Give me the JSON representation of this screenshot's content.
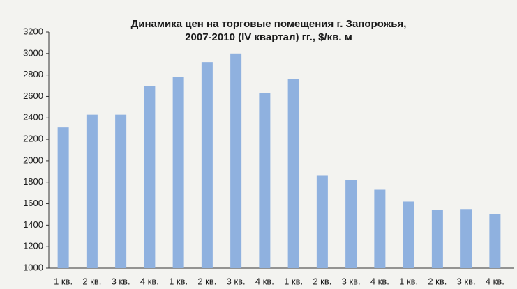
{
  "chart_data": {
    "type": "bar",
    "title": [
      "Динамика цен на торговые помещения г. Запорожья,",
      "2007-2010 (IV квартал) гг., $/кв. м"
    ],
    "categories": [
      "1 кв.",
      "2 кв.",
      "3 кв.",
      "4 кв.",
      "1 кв.",
      "2 кв.",
      "3 кв.",
      "4 кв.",
      "1 кв.",
      "2 кв.",
      "3 кв.",
      "4 кв.",
      "1 кв.",
      "2 кв.",
      "3 кв.",
      "4 кв."
    ],
    "values": [
      2310,
      2430,
      2430,
      2700,
      2780,
      2920,
      3000,
      2630,
      2760,
      1860,
      1820,
      1730,
      1620,
      1540,
      1550,
      1500
    ],
    "color": "#8fb1df",
    "ylim": [
      1000,
      3200
    ],
    "yticks": [
      1000,
      1200,
      1400,
      1600,
      1800,
      2000,
      2200,
      2400,
      2600,
      2800,
      3000,
      3200
    ],
    "grid": false
  }
}
